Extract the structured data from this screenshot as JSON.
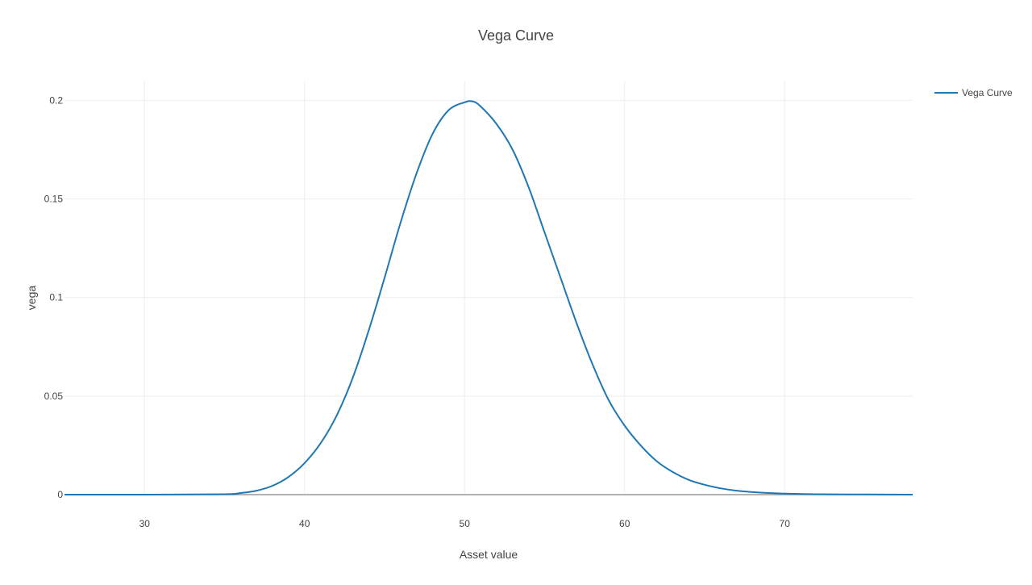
{
  "chart_data": {
    "type": "line",
    "title": "Vega Curve",
    "xlabel": "Asset value",
    "ylabel": "vega",
    "xlim": [
      25,
      78
    ],
    "ylim": [
      0,
      0.21
    ],
    "x_ticks": [
      30,
      40,
      50,
      60,
      70
    ],
    "y_ticks": [
      0,
      0.05,
      0.1,
      0.15,
      0.2
    ],
    "x_tick_labels": [
      "30",
      "40",
      "50",
      "60",
      "70"
    ],
    "y_tick_labels": [
      "0",
      "0.05",
      "0.1",
      "0.15",
      "0.2"
    ],
    "grid": true,
    "legend_position": "top-right",
    "series": [
      {
        "name": "Vega Curve",
        "color": "#1f77b4",
        "x": [
          25,
          30,
          35,
          36,
          37,
          38,
          39,
          40,
          41,
          42,
          43,
          44,
          45,
          46,
          47,
          48,
          49,
          50,
          50.5,
          51,
          52,
          53,
          54,
          55,
          56,
          57,
          58,
          59,
          60,
          61,
          62,
          63,
          64,
          65,
          66,
          67,
          68,
          69,
          70,
          72,
          75,
          78
        ],
        "y": [
          0,
          0,
          0.0002,
          0.0008,
          0.002,
          0.0045,
          0.009,
          0.016,
          0.026,
          0.04,
          0.059,
          0.083,
          0.11,
          0.138,
          0.163,
          0.183,
          0.195,
          0.199,
          0.1995,
          0.197,
          0.188,
          0.175,
          0.156,
          0.133,
          0.11,
          0.087,
          0.066,
          0.048,
          0.035,
          0.025,
          0.017,
          0.0115,
          0.0075,
          0.005,
          0.0032,
          0.002,
          0.0013,
          0.0008,
          0.0005,
          0.0002,
          0.0001,
          0
        ]
      }
    ]
  }
}
